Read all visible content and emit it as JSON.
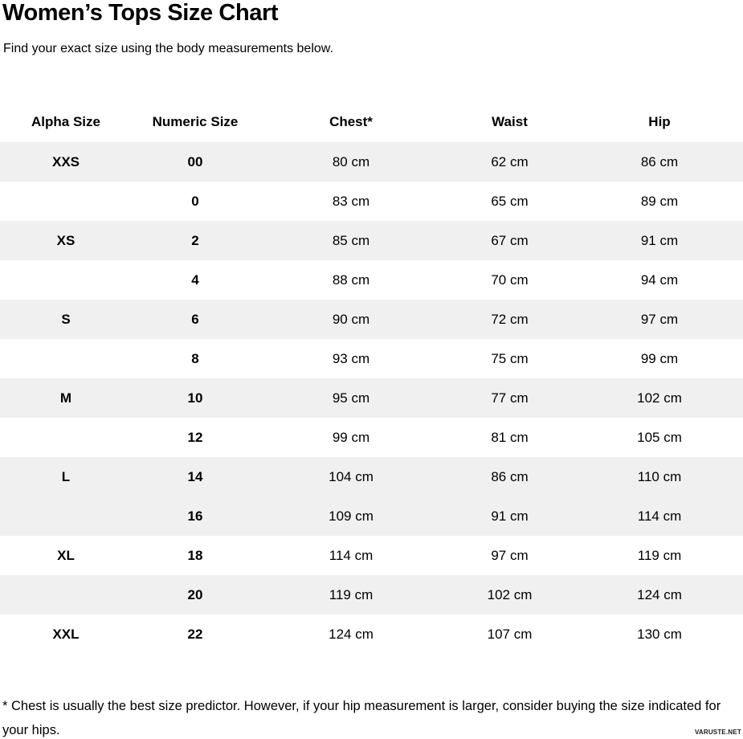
{
  "page": {
    "watermark": "VARUSTE.NET"
  },
  "colors": {
    "stripe": "#f0f0f0",
    "text": "#000000",
    "background": "#ffffff"
  },
  "chart_data": {
    "type": "table",
    "title": "Women’s Tops Size Chart",
    "subtitle": "Find your exact size using the body measurements below.",
    "columns": [
      "Alpha Size",
      "Numeric Size",
      "Chest*",
      "Waist",
      "Hip"
    ],
    "rows": [
      {
        "alpha": "XXS",
        "numeric": "00",
        "chest": "80 cm",
        "waist": "62 cm",
        "hip": "86 cm",
        "shaded": true
      },
      {
        "alpha": "",
        "numeric": "0",
        "chest": "83 cm",
        "waist": "65 cm",
        "hip": "89 cm",
        "shaded": false
      },
      {
        "alpha": "XS",
        "numeric": "2",
        "chest": "85 cm",
        "waist": "67 cm",
        "hip": "91 cm",
        "shaded": true
      },
      {
        "alpha": "",
        "numeric": "4",
        "chest": "88 cm",
        "waist": "70 cm",
        "hip": "94 cm",
        "shaded": false
      },
      {
        "alpha": "S",
        "numeric": "6",
        "chest": "90 cm",
        "waist": "72 cm",
        "hip": "97 cm",
        "shaded": true
      },
      {
        "alpha": "",
        "numeric": "8",
        "chest": "93 cm",
        "waist": "75 cm",
        "hip": "99 cm",
        "shaded": false
      },
      {
        "alpha": "M",
        "numeric": "10",
        "chest": "95 cm",
        "waist": "77 cm",
        "hip": "102 cm",
        "shaded": true
      },
      {
        "alpha": "",
        "numeric": "12",
        "chest": "99 cm",
        "waist": "81 cm",
        "hip": "105 cm",
        "shaded": false
      },
      {
        "alpha": "L",
        "numeric": "14",
        "chest": "104 cm",
        "waist": "86 cm",
        "hip": "110 cm",
        "shaded": true
      },
      {
        "alpha": "",
        "numeric": "16",
        "chest": "109 cm",
        "waist": "91 cm",
        "hip": "114 cm",
        "shaded": true
      },
      {
        "alpha": "XL",
        "numeric": "18",
        "chest": "114 cm",
        "waist": "97 cm",
        "hip": "119 cm",
        "shaded": false
      },
      {
        "alpha": "",
        "numeric": "20",
        "chest": "119 cm",
        "waist": "102 cm",
        "hip": "124 cm",
        "shaded": true
      },
      {
        "alpha": "XXL",
        "numeric": "22",
        "chest": "124 cm",
        "waist": "107 cm",
        "hip": "130 cm",
        "shaded": false
      }
    ],
    "footnote": "* Chest is usually the best size predictor. However, if your hip measurement is larger, consider buying the size indicated for your hips."
  }
}
